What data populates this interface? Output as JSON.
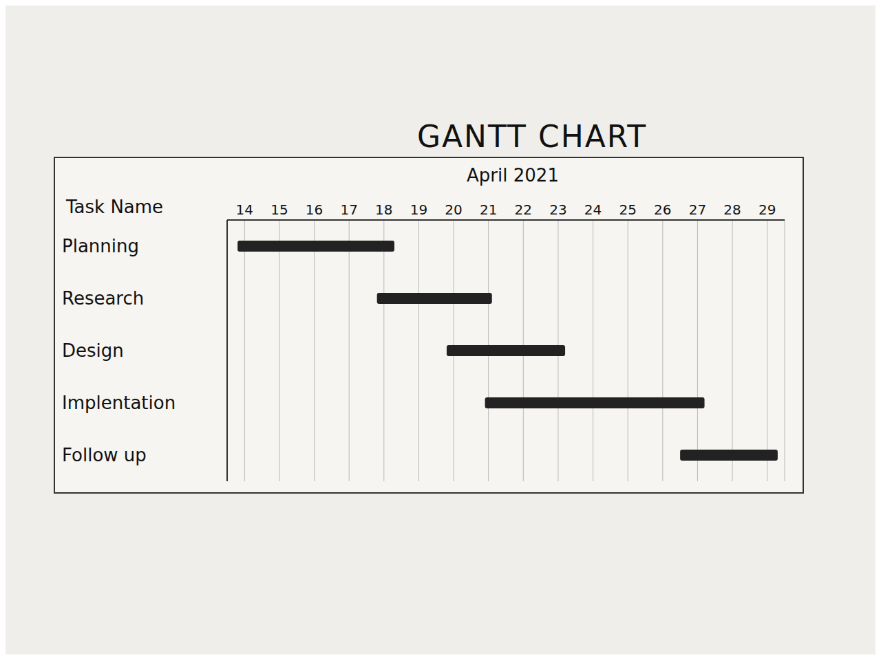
{
  "chart_data": {
    "type": "gantt",
    "title": "GANTT CHART",
    "subtitle": "April 2021",
    "y_label": "Task Name",
    "categories": [
      "Planning",
      "Research",
      "Design",
      "Implentation",
      "Follow up"
    ],
    "starts": [
      13.8,
      17.8,
      19.8,
      20.9,
      26.5
    ],
    "ends": [
      18.3,
      21.1,
      23.2,
      27.2,
      29.3
    ],
    "xlim": [
      13.5,
      29.5
    ],
    "xticks": [
      14,
      15,
      16,
      17,
      18,
      19,
      20,
      21,
      22,
      23,
      24,
      25,
      26,
      27,
      28,
      29
    ],
    "color": "#222222",
    "grid": true,
    "orientation": "horizontal"
  }
}
